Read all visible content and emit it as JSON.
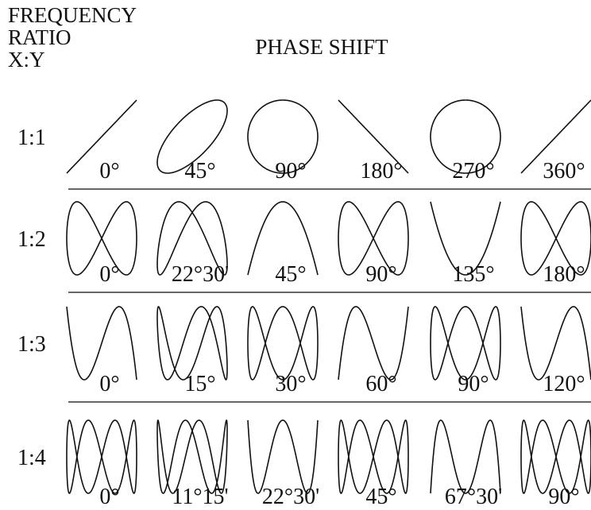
{
  "header": {
    "ratio_label": [
      "FREQUENCY",
      "RATIO",
      "X:Y"
    ],
    "phase_label": "PHASE SHIFT"
  },
  "rows": [
    {
      "ratio": "1:1",
      "phases": [
        "0°",
        "45°",
        "90°",
        "180°",
        "270°",
        "360°"
      ]
    },
    {
      "ratio": "1:2",
      "phases": [
        "0°",
        "22°30'",
        "45°",
        "90°",
        "135°",
        "180°"
      ]
    },
    {
      "ratio": "1:3",
      "phases": [
        "0°",
        "15°",
        "30°",
        "60°",
        "90°",
        "120°"
      ]
    },
    {
      "ratio": "1:4",
      "phases": [
        "0°",
        "11°15'",
        "22°30'",
        "45°",
        "67°30'",
        "90°"
      ]
    }
  ]
}
